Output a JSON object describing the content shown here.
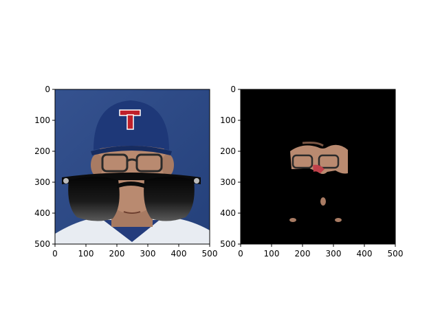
{
  "chart_data": [
    {
      "type": "image",
      "title": "",
      "xlabel": "",
      "ylabel": "",
      "xlim": [
        0,
        500
      ],
      "ylim": [
        500,
        0
      ],
      "x_ticks": [
        0,
        100,
        200,
        300,
        400,
        500
      ],
      "y_ticks": [
        0,
        100,
        200,
        300,
        400,
        500
      ],
      "image_content": "photo of a man in a blue baseball cap with red T logo, eyeglasses, overlaid large black sunglasses",
      "colors": {
        "background": "#2f4f8f",
        "cap": "#1f3b7a",
        "logo": "#c0202a",
        "skin": "#b98a70",
        "sunglasses": "#111111"
      }
    },
    {
      "type": "image",
      "title": "",
      "xlabel": "",
      "ylabel": "",
      "xlim": [
        0,
        500
      ],
      "ylim": [
        500,
        0
      ],
      "x_ticks": [
        0,
        100,
        200,
        300,
        400,
        500
      ],
      "y_ticks": [
        0,
        100,
        200,
        300,
        400,
        500
      ],
      "image_content": "masked version: black background with only fragments of face around glasses visible",
      "colors": {
        "background": "#000000",
        "skin": "#b98a70"
      }
    }
  ]
}
